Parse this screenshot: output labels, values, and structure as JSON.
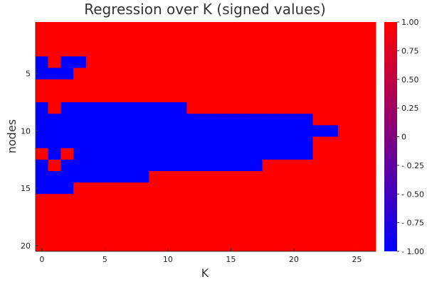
{
  "chart_data": {
    "type": "heatmap",
    "title": "Regression over K (signed values)",
    "xlabel": "K",
    "ylabel": "nodes",
    "x_ticks": [
      "0",
      "5",
      "10",
      "15",
      "20",
      "25"
    ],
    "y_ticks": [
      "5",
      "10",
      "15",
      "20"
    ],
    "colorbar_ticks": [
      "1.00",
      "0.75",
      "0.50",
      "0.25",
      "0",
      "- 0.25",
      "- 0.50",
      "- 0.75",
      "- 1.00"
    ],
    "colorbar_values": [
      1.0,
      0.75,
      0.5,
      0.25,
      0,
      -0.25,
      -0.5,
      -0.75,
      -1.0
    ],
    "clim": [
      -1,
      1
    ],
    "x_range": [
      0,
      26
    ],
    "y_range": [
      1,
      20
    ],
    "colormap": {
      "low": "#0000ff",
      "high": "#ff0000"
    },
    "default_value": 1,
    "negative_cells": {
      "4": [
        0,
        2,
        3
      ],
      "5": [
        0,
        1,
        2
      ],
      "8": [
        0,
        2,
        3,
        4,
        5,
        6,
        7,
        8,
        9,
        10,
        11
      ],
      "9": [
        0,
        1,
        2,
        3,
        4,
        5,
        6,
        7,
        8,
        9,
        10,
        11,
        12,
        13,
        14,
        15,
        16,
        17,
        18,
        19,
        20,
        21
      ],
      "10": [
        0,
        1,
        2,
        3,
        4,
        5,
        6,
        7,
        8,
        9,
        10,
        11,
        12,
        13,
        14,
        15,
        16,
        17,
        18,
        19,
        20,
        21,
        22,
        23
      ],
      "11": [
        0,
        1,
        2,
        3,
        4,
        5,
        6,
        7,
        8,
        9,
        10,
        11,
        12,
        13,
        14,
        15,
        16,
        17,
        18,
        19,
        20,
        21
      ],
      "12": [
        1,
        3,
        4,
        5,
        6,
        7,
        8,
        9,
        10,
        11,
        12,
        13,
        14,
        15,
        16,
        17,
        18,
        19,
        20,
        21
      ],
      "13": [
        0,
        2,
        3,
        4,
        5,
        6,
        7,
        8,
        9,
        10,
        11,
        12,
        13,
        14,
        15,
        16,
        17
      ],
      "14": [
        0,
        1,
        2,
        3,
        4,
        5,
        6,
        7,
        8
      ],
      "15": [
        0,
        1,
        2
      ]
    }
  }
}
